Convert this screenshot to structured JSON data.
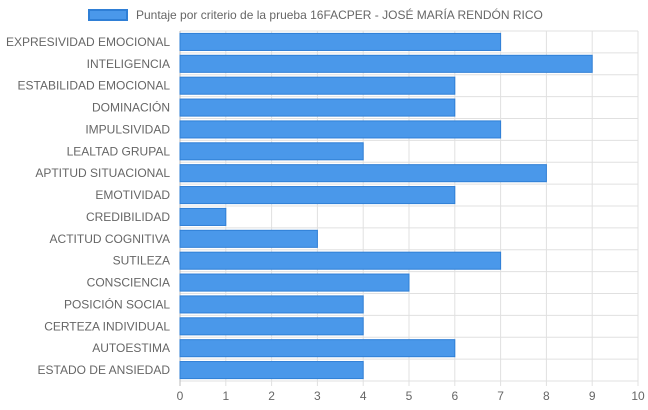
{
  "chart_data": {
    "type": "bar",
    "orientation": "horizontal",
    "categories": [
      "EXPRESIVIDAD EMOCIONAL",
      "INTELIGENCIA",
      "ESTABILIDAD EMOCIONAL",
      "DOMINACIÓN",
      "IMPULSIVIDAD",
      "LEALTAD GRUPAL",
      "APTITUD SITUACIONAL",
      "EMOTIVIDAD",
      "CREDIBILIDAD",
      "ACTITUD COGNITIVA",
      "SUTILEZA",
      "CONSCIENCIA",
      "POSICIÓN SOCIAL",
      "CERTEZA INDIVIDUAL",
      "AUTOESTIMA",
      "ESTADO DE ANSIEDAD"
    ],
    "series": [
      {
        "name": "Puntaje por criterio de la prueba 16FACPER - JOSÉ MARÍA RENDÓN RICO",
        "values": [
          7,
          9,
          6,
          6,
          7,
          4,
          8,
          6,
          1,
          3,
          7,
          5,
          4,
          4,
          6,
          4
        ]
      }
    ],
    "xlim": [
      0,
      10
    ],
    "xticks": [
      0,
      1,
      2,
      3,
      4,
      5,
      6,
      7,
      8,
      9,
      10
    ],
    "grid": true,
    "legend_position": "top",
    "colors": {
      "bar_fill": "#4a98ea",
      "bar_border": "#2f7fd6",
      "grid": "#e0e0e0",
      "axis": "#bbbbbb",
      "text": "#666666"
    }
  }
}
